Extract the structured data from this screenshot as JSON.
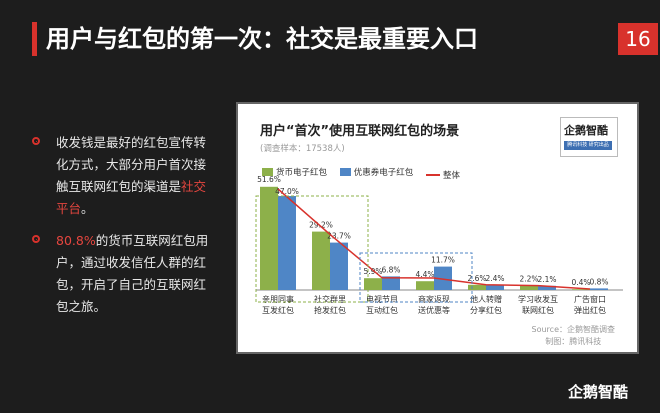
{
  "slide": {
    "title": "用户与红包的第一次：社交是最重要入口",
    "page_number": "16",
    "brand": "企鹅智酷",
    "colors": {
      "accent": "#d8322c",
      "background": "#1d1d1d"
    }
  },
  "left_text": {
    "para1_part1": "收发钱是最好的红包宣传转化方式，大部分用户首次接触互联网红包的渠道是",
    "para1_highlight": "社交平台",
    "para1_part2": "。",
    "para2_highlight": "80.8%",
    "para2_part1": "的货币互联网红包用户，通过收发信任人群的红包，开启了自己的互联网红包之旅。"
  },
  "card": {
    "logo_text": "企鹅智酷",
    "logo_strip": "腾讯科技 研究出品",
    "source_line1": "Source：企鹅智酷调查",
    "source_line2": "制图：腾讯科技"
  },
  "chart_data": {
    "type": "bar",
    "title": "用户“首次”使用互联网红包的场景",
    "subtitle": "(调查样本：17538人)",
    "categories": [
      "亲朋同事互发红包",
      "社交群里抢发红包",
      "电视节目互动红包",
      "商家返现送优惠等",
      "他人转赠分享红包",
      "学习收发互联网红包",
      "广告窗口弹出红包"
    ],
    "series": [
      {
        "name": "货币电子红包",
        "color": "#8db04a",
        "values": [
          51.6,
          29.2,
          5.9,
          4.4,
          2.6,
          2.2,
          0.4
        ],
        "labels": [
          "51.6%",
          "29.2%",
          "5.9%",
          "4.4%",
          "2.6%",
          "2.2%",
          "0.4%"
        ]
      },
      {
        "name": "优惠券电子红包",
        "color": "#4f86c6",
        "values": [
          47.0,
          23.7,
          6.8,
          11.7,
          2.4,
          2.1,
          0.8
        ],
        "labels": [
          "47.0%",
          "23.7%",
          "6.8%",
          "11.7%",
          "2.4%",
          "2.1%",
          "0.8%"
        ]
      },
      {
        "name": "整体",
        "type": "line",
        "color": "#d8322c",
        "values": [
          50.5,
          27.8,
          6.1,
          6.0,
          2.6,
          2.2,
          0.5
        ]
      }
    ],
    "ylim": [
      0,
      60
    ],
    "grid": false,
    "legend": "top-left"
  }
}
